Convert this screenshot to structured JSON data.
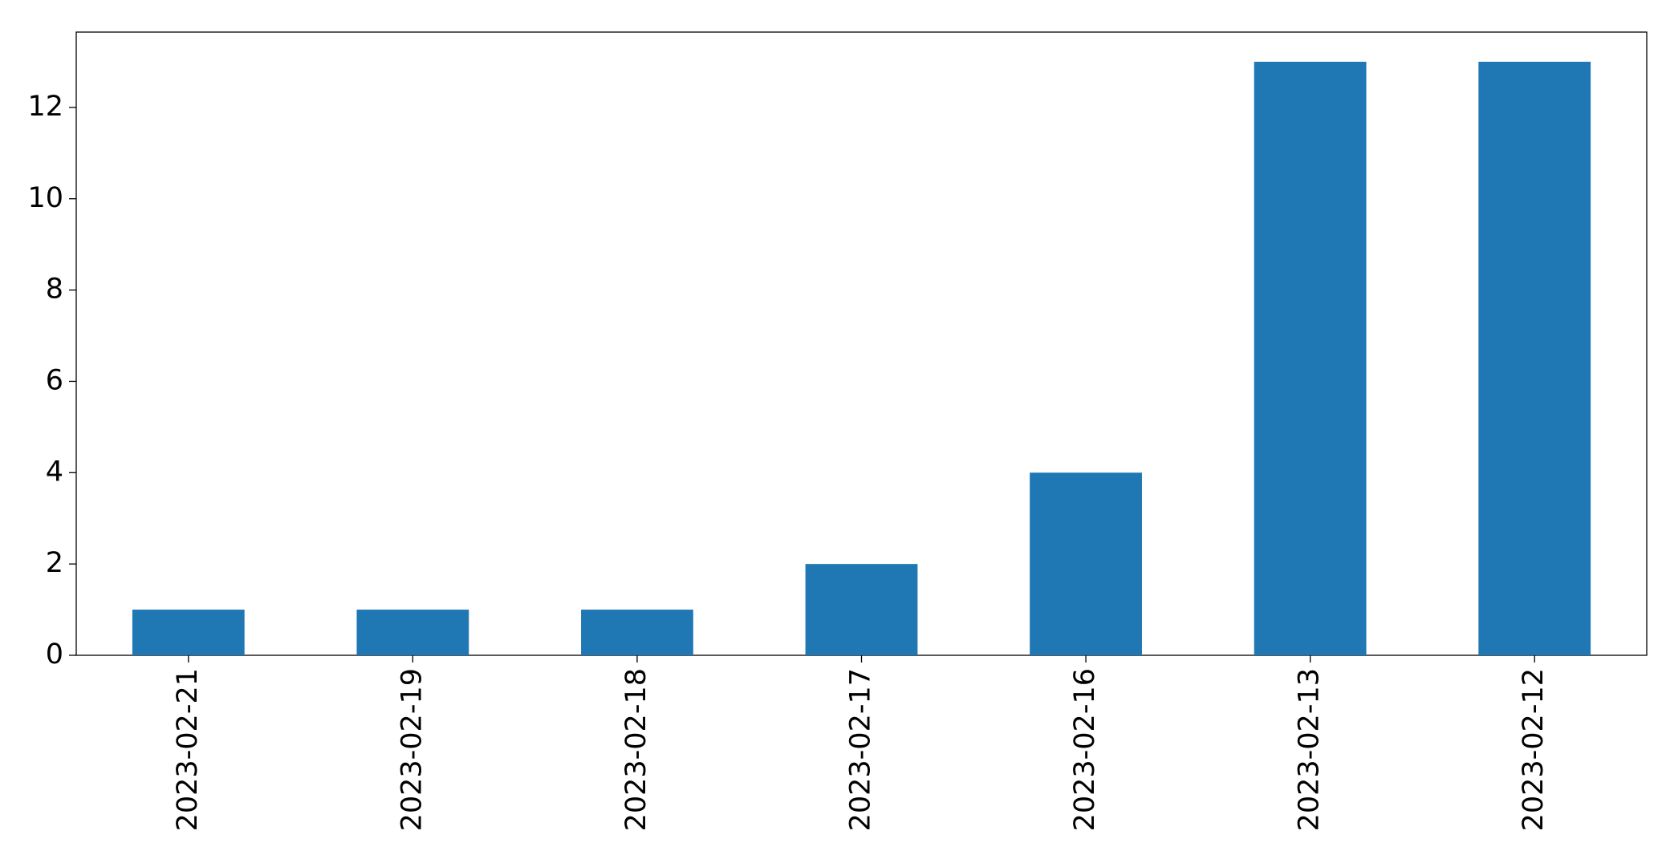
{
  "chart_data": {
    "type": "bar",
    "categories": [
      "2023-02-21",
      "2023-02-19",
      "2023-02-18",
      "2023-02-17",
      "2023-02-16",
      "2023-02-13",
      "2023-02-12"
    ],
    "values": [
      1,
      1,
      1,
      2,
      4,
      13,
      13
    ],
    "color": "#1f77b4",
    "ylim": [
      0,
      13.65
    ],
    "yticks": [
      0,
      2,
      4,
      6,
      8,
      10,
      12
    ],
    "grid": false
  }
}
